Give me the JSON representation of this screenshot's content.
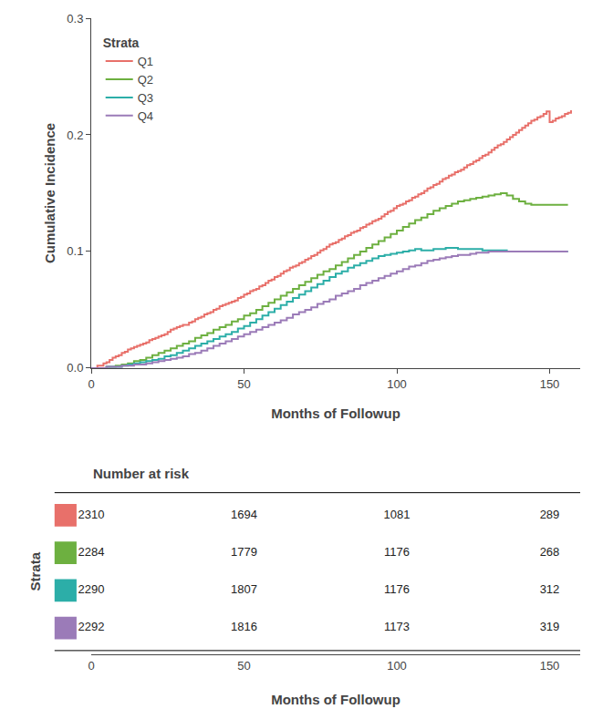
{
  "chart_data": {
    "type": "step",
    "xlabel": "Months of Followup",
    "ylabel": "Cumulative Incidence",
    "xlim": [
      0,
      160
    ],
    "ylim": [
      0,
      0.3
    ],
    "xticks": [
      0,
      50,
      100,
      150
    ],
    "yticks": [
      {
        "value": 0,
        "label": "0.0"
      },
      0.1,
      0.2,
      0.3
    ],
    "grid": false,
    "legend": "upper left",
    "legend_title": "Strata",
    "series": [
      {
        "name": "Q1",
        "color": "#E8706A",
        "x": [
          0,
          2,
          4,
          5,
          6,
          7,
          8,
          9,
          10,
          11,
          12,
          13,
          14,
          15,
          16,
          17,
          18,
          19,
          20,
          21,
          22,
          23,
          24,
          25,
          26,
          27,
          28,
          29,
          30,
          32,
          33,
          34,
          35,
          36,
          37,
          38,
          39,
          40,
          41,
          42,
          43,
          44,
          45,
          46,
          47,
          48,
          49,
          50,
          51,
          52,
          53,
          54,
          55,
          56,
          57,
          58,
          59,
          60,
          61,
          62,
          63,
          64,
          65,
          66,
          67,
          68,
          69,
          70,
          71,
          72,
          73,
          74,
          75,
          76,
          77,
          78,
          79,
          80,
          81,
          82,
          83,
          84,
          85,
          86,
          87,
          88,
          89,
          90,
          91,
          92,
          93,
          94,
          95,
          96,
          97,
          98,
          99,
          100,
          101,
          102,
          103,
          104,
          105,
          106,
          107,
          108,
          109,
          110,
          111,
          112,
          113,
          114,
          115,
          116,
          117,
          118,
          119,
          120,
          121,
          122,
          123,
          124,
          125,
          126,
          127,
          128,
          129,
          130,
          131,
          132,
          133,
          134,
          135,
          136,
          137,
          138,
          139,
          140,
          141,
          142,
          143,
          144,
          145,
          146,
          147,
          148,
          149,
          150,
          151,
          152,
          153,
          154,
          155,
          156,
          157
        ],
        "values": [
          0,
          0.002,
          0.004,
          0.005,
          0.007,
          0.009,
          0.01,
          0.011,
          0.013,
          0.014,
          0.016,
          0.017,
          0.018,
          0.019,
          0.02,
          0.021,
          0.022,
          0.024,
          0.025,
          0.026,
          0.027,
          0.028,
          0.029,
          0.031,
          0.033,
          0.034,
          0.035,
          0.036,
          0.037,
          0.039,
          0.04,
          0.042,
          0.043,
          0.044,
          0.046,
          0.047,
          0.048,
          0.05,
          0.051,
          0.053,
          0.054,
          0.055,
          0.056,
          0.057,
          0.058,
          0.06,
          0.061,
          0.063,
          0.064,
          0.066,
          0.067,
          0.068,
          0.07,
          0.071,
          0.073,
          0.075,
          0.076,
          0.078,
          0.079,
          0.081,
          0.083,
          0.084,
          0.086,
          0.087,
          0.088,
          0.09,
          0.091,
          0.093,
          0.094,
          0.096,
          0.097,
          0.099,
          0.101,
          0.102,
          0.104,
          0.106,
          0.107,
          0.108,
          0.11,
          0.111,
          0.113,
          0.114,
          0.116,
          0.117,
          0.118,
          0.12,
          0.121,
          0.123,
          0.124,
          0.126,
          0.127,
          0.128,
          0.13,
          0.132,
          0.134,
          0.135,
          0.137,
          0.139,
          0.14,
          0.141,
          0.143,
          0.144,
          0.146,
          0.147,
          0.149,
          0.15,
          0.152,
          0.154,
          0.155,
          0.157,
          0.158,
          0.16,
          0.162,
          0.163,
          0.165,
          0.166,
          0.168,
          0.169,
          0.17,
          0.172,
          0.174,
          0.175,
          0.177,
          0.178,
          0.18,
          0.182,
          0.183,
          0.185,
          0.187,
          0.189,
          0.191,
          0.192,
          0.194,
          0.196,
          0.198,
          0.2,
          0.202,
          0.204,
          0.206,
          0.208,
          0.21,
          0.212,
          0.213,
          0.215,
          0.216,
          0.218,
          0.22,
          0.211,
          0.212,
          0.214,
          0.215,
          0.216,
          0.218,
          0.219,
          0.221
        ]
      },
      {
        "name": "Q2",
        "color": "#6DB040",
        "x": [
          0,
          5,
          8,
          10,
          12,
          14,
          16,
          18,
          20,
          22,
          24,
          26,
          28,
          30,
          32,
          34,
          36,
          38,
          40,
          42,
          44,
          46,
          48,
          50,
          52,
          54,
          56,
          58,
          60,
          62,
          64,
          66,
          68,
          70,
          72,
          74,
          76,
          78,
          80,
          82,
          84,
          86,
          88,
          90,
          92,
          94,
          96,
          98,
          100,
          102,
          104,
          106,
          108,
          110,
          112,
          114,
          116,
          118,
          120,
          122,
          124,
          126,
          128,
          130,
          132,
          134,
          136,
          138,
          140,
          142,
          144,
          146,
          148,
          150,
          152,
          154,
          156
        ],
        "values": [
          0,
          0.001,
          0.002,
          0.003,
          0.004,
          0.006,
          0.007,
          0.009,
          0.011,
          0.013,
          0.015,
          0.017,
          0.019,
          0.021,
          0.023,
          0.026,
          0.028,
          0.03,
          0.033,
          0.035,
          0.037,
          0.04,
          0.042,
          0.045,
          0.047,
          0.05,
          0.053,
          0.056,
          0.059,
          0.062,
          0.065,
          0.068,
          0.071,
          0.074,
          0.077,
          0.08,
          0.083,
          0.085,
          0.088,
          0.091,
          0.094,
          0.097,
          0.1,
          0.103,
          0.106,
          0.109,
          0.112,
          0.115,
          0.118,
          0.121,
          0.124,
          0.127,
          0.129,
          0.132,
          0.135,
          0.137,
          0.139,
          0.141,
          0.143,
          0.144,
          0.145,
          0.146,
          0.147,
          0.148,
          0.149,
          0.15,
          0.148,
          0.145,
          0.143,
          0.141,
          0.14,
          0.14,
          0.14,
          0.14,
          0.14,
          0.14,
          0.14
        ]
      },
      {
        "name": "Q3",
        "color": "#2CAEA8",
        "x": [
          0,
          5,
          8,
          10,
          12,
          14,
          16,
          18,
          20,
          22,
          24,
          26,
          28,
          30,
          32,
          34,
          36,
          38,
          40,
          42,
          44,
          46,
          48,
          50,
          52,
          54,
          56,
          58,
          60,
          62,
          64,
          66,
          68,
          70,
          72,
          74,
          76,
          78,
          80,
          82,
          84,
          86,
          88,
          90,
          92,
          94,
          96,
          98,
          100,
          102,
          104,
          106,
          108,
          110,
          112,
          114,
          116,
          118,
          120,
          122,
          124,
          126,
          128,
          130,
          132,
          134,
          136,
          138,
          140,
          142,
          144,
          146,
          148,
          150,
          152,
          154,
          156
        ],
        "values": [
          0,
          0.001,
          0.001,
          0.002,
          0.003,
          0.004,
          0.005,
          0.006,
          0.007,
          0.008,
          0.01,
          0.011,
          0.013,
          0.015,
          0.017,
          0.019,
          0.021,
          0.023,
          0.025,
          0.027,
          0.029,
          0.031,
          0.034,
          0.036,
          0.039,
          0.042,
          0.045,
          0.048,
          0.051,
          0.054,
          0.057,
          0.06,
          0.063,
          0.066,
          0.069,
          0.072,
          0.075,
          0.078,
          0.081,
          0.083,
          0.086,
          0.088,
          0.09,
          0.092,
          0.094,
          0.096,
          0.097,
          0.098,
          0.099,
          0.1,
          0.101,
          0.102,
          0.101,
          0.101,
          0.102,
          0.102,
          0.103,
          0.103,
          0.102,
          0.102,
          0.102,
          0.102,
          0.101,
          0.101,
          0.101,
          0.101,
          0.1,
          0.1,
          0.1,
          0.1,
          0.1,
          0.1,
          0.1,
          0.1,
          0.1,
          0.1,
          0.1
        ]
      },
      {
        "name": "Q4",
        "color": "#9B7BB8",
        "x": [
          0,
          5,
          8,
          10,
          12,
          14,
          16,
          18,
          20,
          22,
          24,
          26,
          28,
          30,
          32,
          34,
          36,
          38,
          40,
          42,
          44,
          46,
          48,
          50,
          52,
          54,
          56,
          58,
          60,
          62,
          64,
          66,
          68,
          70,
          72,
          74,
          76,
          78,
          80,
          82,
          84,
          86,
          88,
          90,
          92,
          94,
          96,
          98,
          100,
          102,
          104,
          106,
          108,
          110,
          112,
          114,
          116,
          118,
          120,
          122,
          124,
          126,
          128,
          130,
          132,
          134,
          136,
          138,
          140,
          142,
          144,
          146,
          148,
          150,
          152,
          154,
          156
        ],
        "values": [
          0,
          0.001,
          0.001,
          0.002,
          0.002,
          0.003,
          0.003,
          0.004,
          0.005,
          0.006,
          0.007,
          0.008,
          0.009,
          0.01,
          0.012,
          0.013,
          0.015,
          0.017,
          0.019,
          0.021,
          0.023,
          0.025,
          0.027,
          0.029,
          0.031,
          0.033,
          0.035,
          0.037,
          0.039,
          0.041,
          0.043,
          0.046,
          0.048,
          0.05,
          0.052,
          0.055,
          0.057,
          0.059,
          0.062,
          0.064,
          0.066,
          0.068,
          0.071,
          0.073,
          0.075,
          0.077,
          0.079,
          0.081,
          0.083,
          0.085,
          0.087,
          0.088,
          0.09,
          0.092,
          0.093,
          0.094,
          0.095,
          0.096,
          0.097,
          0.097,
          0.098,
          0.099,
          0.099,
          0.1,
          0.1,
          0.1,
          0.1,
          0.1,
          0.1,
          0.1,
          0.1,
          0.1,
          0.1,
          0.1,
          0.1,
          0.1,
          0.1
        ]
      }
    ],
    "risk_table": {
      "title": "Number at risk",
      "times": [
        0,
        50,
        100,
        150
      ],
      "rows": [
        {
          "name": "Q1",
          "values": [
            2310,
            1694,
            1081,
            289
          ]
        },
        {
          "name": "Q2",
          "values": [
            2284,
            1779,
            1176,
            268
          ]
        },
        {
          "name": "Q3",
          "values": [
            2290,
            1807,
            1176,
            312
          ]
        },
        {
          "name": "Q4",
          "values": [
            2292,
            1816,
            1173,
            319
          ]
        }
      ]
    }
  }
}
